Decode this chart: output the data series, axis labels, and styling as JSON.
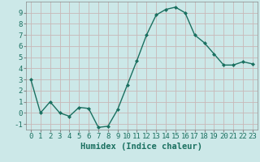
{
  "x": [
    0,
    1,
    2,
    3,
    4,
    5,
    6,
    7,
    8,
    9,
    10,
    11,
    12,
    13,
    14,
    15,
    16,
    17,
    18,
    19,
    20,
    21,
    22,
    23
  ],
  "y": [
    3.0,
    0.0,
    1.0,
    0.0,
    -0.3,
    0.5,
    0.4,
    -1.3,
    -1.2,
    0.3,
    2.5,
    4.7,
    7.0,
    8.8,
    9.3,
    9.5,
    9.0,
    7.0,
    6.3,
    5.3,
    4.3,
    4.3,
    4.6,
    4.4
  ],
  "line_color": "#1a7060",
  "marker": "D",
  "marker_size": 2.0,
  "linewidth": 1.0,
  "bg_color": "#cce8e8",
  "grid_color": "#c8b8b8",
  "xlabel": "Humidex (Indice chaleur)",
  "xlabel_fontsize": 7.5,
  "xlim": [
    -0.5,
    23.5
  ],
  "ylim": [
    -1.5,
    10.0
  ],
  "yticks": [
    -1,
    0,
    1,
    2,
    3,
    4,
    5,
    6,
    7,
    8,
    9
  ],
  "xticks": [
    0,
    1,
    2,
    3,
    4,
    5,
    6,
    7,
    8,
    9,
    10,
    11,
    12,
    13,
    14,
    15,
    16,
    17,
    18,
    19,
    20,
    21,
    22,
    23
  ],
  "tick_fontsize": 6.5
}
